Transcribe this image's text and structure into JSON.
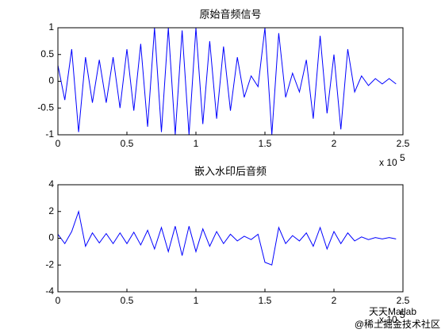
{
  "chart_data": [
    {
      "type": "line",
      "title": "原始音频信号",
      "x": [
        0,
        5000,
        10000,
        15000,
        20000,
        25000,
        30000,
        35000,
        40000,
        45000,
        50000,
        55000,
        60000,
        65000,
        70000,
        75000,
        80000,
        85000,
        90000,
        95000,
        100000,
        105000,
        110000,
        115000,
        120000,
        125000,
        130000,
        135000,
        140000,
        145000,
        150000,
        155000,
        160000,
        165000,
        170000,
        175000,
        180000,
        185000,
        190000,
        195000,
        200000,
        205000,
        210000,
        215000,
        220000,
        225000,
        230000,
        235000,
        240000,
        245000
      ],
      "values": [
        0.3,
        -0.35,
        0.6,
        -0.95,
        0.45,
        -0.4,
        0.4,
        -0.4,
        0.45,
        -0.5,
        0.6,
        -0.55,
        0.7,
        -0.85,
        1,
        -0.95,
        1,
        -1,
        0.95,
        -1,
        1,
        -0.8,
        0.75,
        -0.7,
        0.65,
        -0.55,
        0.45,
        -0.3,
        0.1,
        -0.1,
        1,
        -1,
        0.9,
        -0.3,
        0.15,
        -0.2,
        0.4,
        -0.7,
        0.85,
        -0.6,
        0.5,
        -0.9,
        0.6,
        -0.2,
        0.1,
        -0.08,
        0.05,
        -0.05,
        0.05,
        -0.05
      ],
      "color": "#0000ff",
      "xlim": [
        0,
        250000
      ],
      "xticks": [
        0,
        {
          "value": 50000,
          "label": "0.5"
        },
        {
          "value": 100000,
          "label": "1"
        },
        {
          "value": 150000,
          "label": "1.5"
        },
        {
          "value": 200000,
          "label": "2"
        },
        {
          "value": 250000,
          "label": "2.5"
        }
      ],
      "x_scale_label": "x 10",
      "x_scale_power": "5",
      "ylim": [
        -1,
        1
      ],
      "yticks": [
        -1,
        -0.5,
        0,
        0.5,
        1
      ]
    },
    {
      "type": "line",
      "title": "嵌入水印后音频",
      "x": [
        0,
        5000,
        10000,
        15000,
        20000,
        25000,
        30000,
        35000,
        40000,
        45000,
        50000,
        55000,
        60000,
        65000,
        70000,
        75000,
        80000,
        85000,
        90000,
        95000,
        100000,
        105000,
        110000,
        115000,
        120000,
        125000,
        130000,
        135000,
        140000,
        145000,
        150000,
        155000,
        160000,
        165000,
        170000,
        175000,
        180000,
        185000,
        190000,
        195000,
        200000,
        205000,
        210000,
        215000,
        220000,
        225000,
        230000,
        235000,
        240000,
        245000
      ],
      "values": [
        0.3,
        -0.4,
        0.5,
        2.0,
        -0.6,
        0.4,
        -0.35,
        0.35,
        -0.4,
        0.4,
        -0.4,
        0.45,
        -0.5,
        0.6,
        -0.8,
        0.8,
        -1.0,
        0.9,
        -1.3,
        0.9,
        -1.0,
        0.7,
        -0.6,
        0.5,
        -0.4,
        0.3,
        -0.2,
        0.15,
        -0.1,
        0.3,
        -1.8,
        -2.0,
        0.8,
        -0.4,
        0.2,
        -0.2,
        0.4,
        -0.6,
        0.8,
        -0.8,
        0.5,
        -0.4,
        0.4,
        -0.2,
        0.1,
        -0.1,
        0.05,
        -0.05,
        0.05,
        -0.05
      ],
      "color": "#0000ff",
      "xlim": [
        0,
        250000
      ],
      "xticks": [
        0,
        {
          "value": 50000,
          "label": "0.5"
        },
        {
          "value": 100000,
          "label": "1"
        },
        {
          "value": 150000,
          "label": "1.5"
        },
        {
          "value": 200000,
          "label": "2"
        },
        {
          "value": 250000,
          "label": "2.5"
        }
      ],
      "x_scale_label": "x 10",
      "x_scale_power": "5",
      "ylim": [
        -4,
        4
      ],
      "yticks": [
        -4,
        -2,
        0,
        2,
        4
      ]
    }
  ],
  "watermark": {
    "logo_text": "天天Matlab",
    "caption": "@稀土掘金技术社区"
  }
}
